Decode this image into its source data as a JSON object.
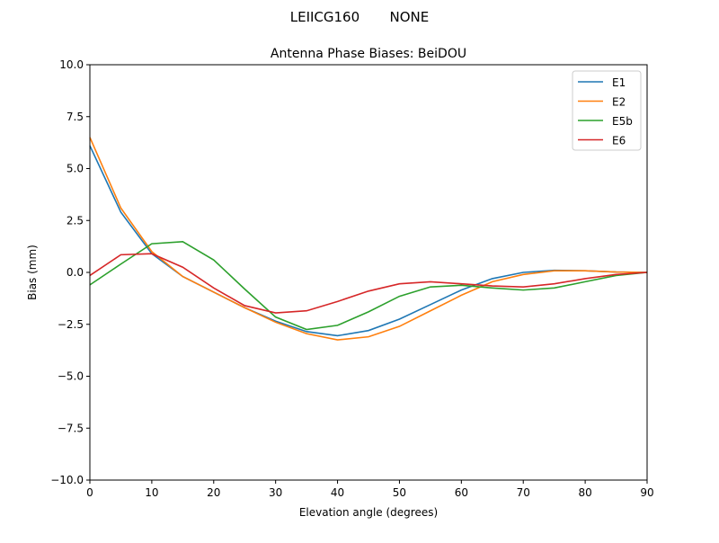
{
  "suptitle": "LEIICG160       NONE",
  "chart_data": {
    "type": "line",
    "title": "Antenna Phase Biases: BeiDOU",
    "xlabel": "Elevation angle (degrees)",
    "ylabel": "Bias (mm)",
    "xlim": [
      0,
      90
    ],
    "ylim": [
      -10,
      10
    ],
    "xticks": [
      "0",
      "10",
      "20",
      "30",
      "40",
      "50",
      "60",
      "70",
      "80",
      "90"
    ],
    "yticks": [
      "10.0",
      "7.5",
      "5.0",
      "2.5",
      "0.0",
      "−2.5",
      "−5.0",
      "−7.5",
      "−10.0"
    ],
    "grid": false,
    "legend_position": "top-right",
    "x": [
      0,
      5,
      10,
      15,
      20,
      25,
      30,
      35,
      40,
      45,
      50,
      55,
      60,
      65,
      70,
      75,
      80,
      85,
      90
    ],
    "series": [
      {
        "name": "E1",
        "color": "#1f77b4",
        "values": [
          6.1,
          2.9,
          0.9,
          -0.2,
          -0.95,
          -1.7,
          -2.35,
          -2.85,
          -3.05,
          -2.8,
          -2.25,
          -1.55,
          -0.85,
          -0.3,
          0.0,
          0.1,
          0.08,
          0.02,
          0
        ]
      },
      {
        "name": "E2",
        "color": "#ff7f0e",
        "values": [
          6.5,
          3.1,
          1.0,
          -0.2,
          -0.95,
          -1.7,
          -2.4,
          -2.95,
          -3.25,
          -3.1,
          -2.6,
          -1.85,
          -1.1,
          -0.45,
          -0.1,
          0.08,
          0.08,
          0.02,
          0
        ]
      },
      {
        "name": "E5b",
        "color": "#2ca02c",
        "values": [
          -0.6,
          0.4,
          1.38,
          1.48,
          0.6,
          -0.8,
          -2.15,
          -2.75,
          -2.55,
          -1.9,
          -1.15,
          -0.7,
          -0.62,
          -0.75,
          -0.85,
          -0.75,
          -0.45,
          -0.15,
          0
        ]
      },
      {
        "name": "E6",
        "color": "#d62728",
        "values": [
          -0.15,
          0.85,
          0.9,
          0.25,
          -0.75,
          -1.6,
          -1.95,
          -1.85,
          -1.4,
          -0.9,
          -0.55,
          -0.45,
          -0.55,
          -0.65,
          -0.7,
          -0.55,
          -0.3,
          -0.1,
          0
        ]
      }
    ]
  }
}
